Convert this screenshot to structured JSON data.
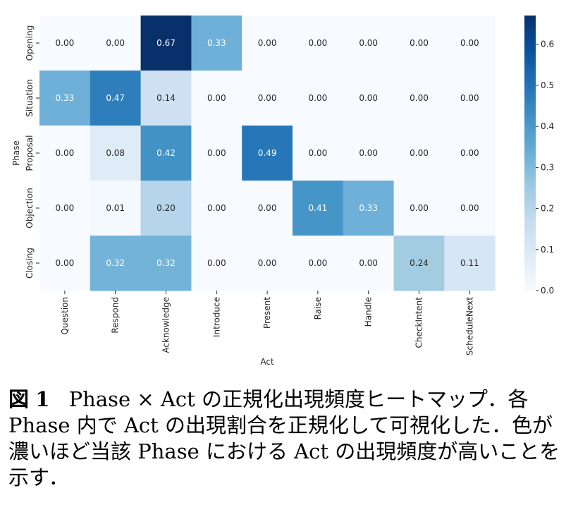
{
  "chart_data": {
    "type": "heatmap",
    "x_categories": [
      "Question",
      "Respond",
      "Acknowledge",
      "Introduce",
      "Present",
      "Raise",
      "Handle",
      "CheckIntent",
      "ScheduleNext"
    ],
    "y_categories": [
      "Opening",
      "Situation",
      "Proposal",
      "Objection",
      "Closing"
    ],
    "values": [
      [
        0.0,
        0.0,
        0.67,
        0.33,
        0.0,
        0.0,
        0.0,
        0.0,
        0.0
      ],
      [
        0.33,
        0.47,
        0.14,
        0.0,
        0.0,
        0.0,
        0.0,
        0.0,
        0.0
      ],
      [
        0.0,
        0.08,
        0.42,
        0.0,
        0.49,
        0.0,
        0.0,
        0.0,
        0.0
      ],
      [
        0.0,
        0.01,
        0.2,
        0.0,
        0.0,
        0.41,
        0.33,
        0.0,
        0.0
      ],
      [
        0.0,
        0.32,
        0.32,
        0.0,
        0.0,
        0.0,
        0.0,
        0.24,
        0.11
      ]
    ],
    "cell_labels": [
      [
        "0.00",
        "0.00",
        "0.67",
        "0.33",
        "0.00",
        "0.00",
        "0.00",
        "0.00",
        "0.00"
      ],
      [
        "0.33",
        "0.47",
        "0.14",
        "0.00",
        "0.00",
        "0.00",
        "0.00",
        "0.00",
        "0.00"
      ],
      [
        "0.00",
        "0.08",
        "0.42",
        "0.00",
        "0.49",
        "0.00",
        "0.00",
        "0.00",
        "0.00"
      ],
      [
        "0.00",
        "0.01",
        "0.20",
        "0.00",
        "0.00",
        "0.41",
        "0.33",
        "0.00",
        "0.00"
      ],
      [
        "0.00",
        "0.32",
        "0.32",
        "0.00",
        "0.00",
        "0.00",
        "0.00",
        "0.24",
        "0.11"
      ]
    ],
    "xlabel": "Act",
    "ylabel": "Phase",
    "colorbar": {
      "colormap": "Blues",
      "range": [
        0.0,
        0.67
      ],
      "ticks": [
        0.0,
        0.1,
        0.2,
        0.3,
        0.4,
        0.5,
        0.6
      ],
      "tick_labels": [
        "0.0",
        "0.1",
        "0.2",
        "0.3",
        "0.4",
        "0.5",
        "0.6"
      ],
      "placement": "right"
    },
    "colors": {
      "low": "#f7fbff",
      "high": "#08306b",
      "dark_text": "#262626",
      "light_text": "#ffffff"
    }
  },
  "caption": {
    "label": "図",
    "number": "1",
    "text": "Phase × Act の正規化出現頻度ヒートマップ．各 Phase 内で Act の出現割合を正規化して可視化した．色が濃いほど当該 Phase における Act の出現頻度が高いことを示す．"
  }
}
